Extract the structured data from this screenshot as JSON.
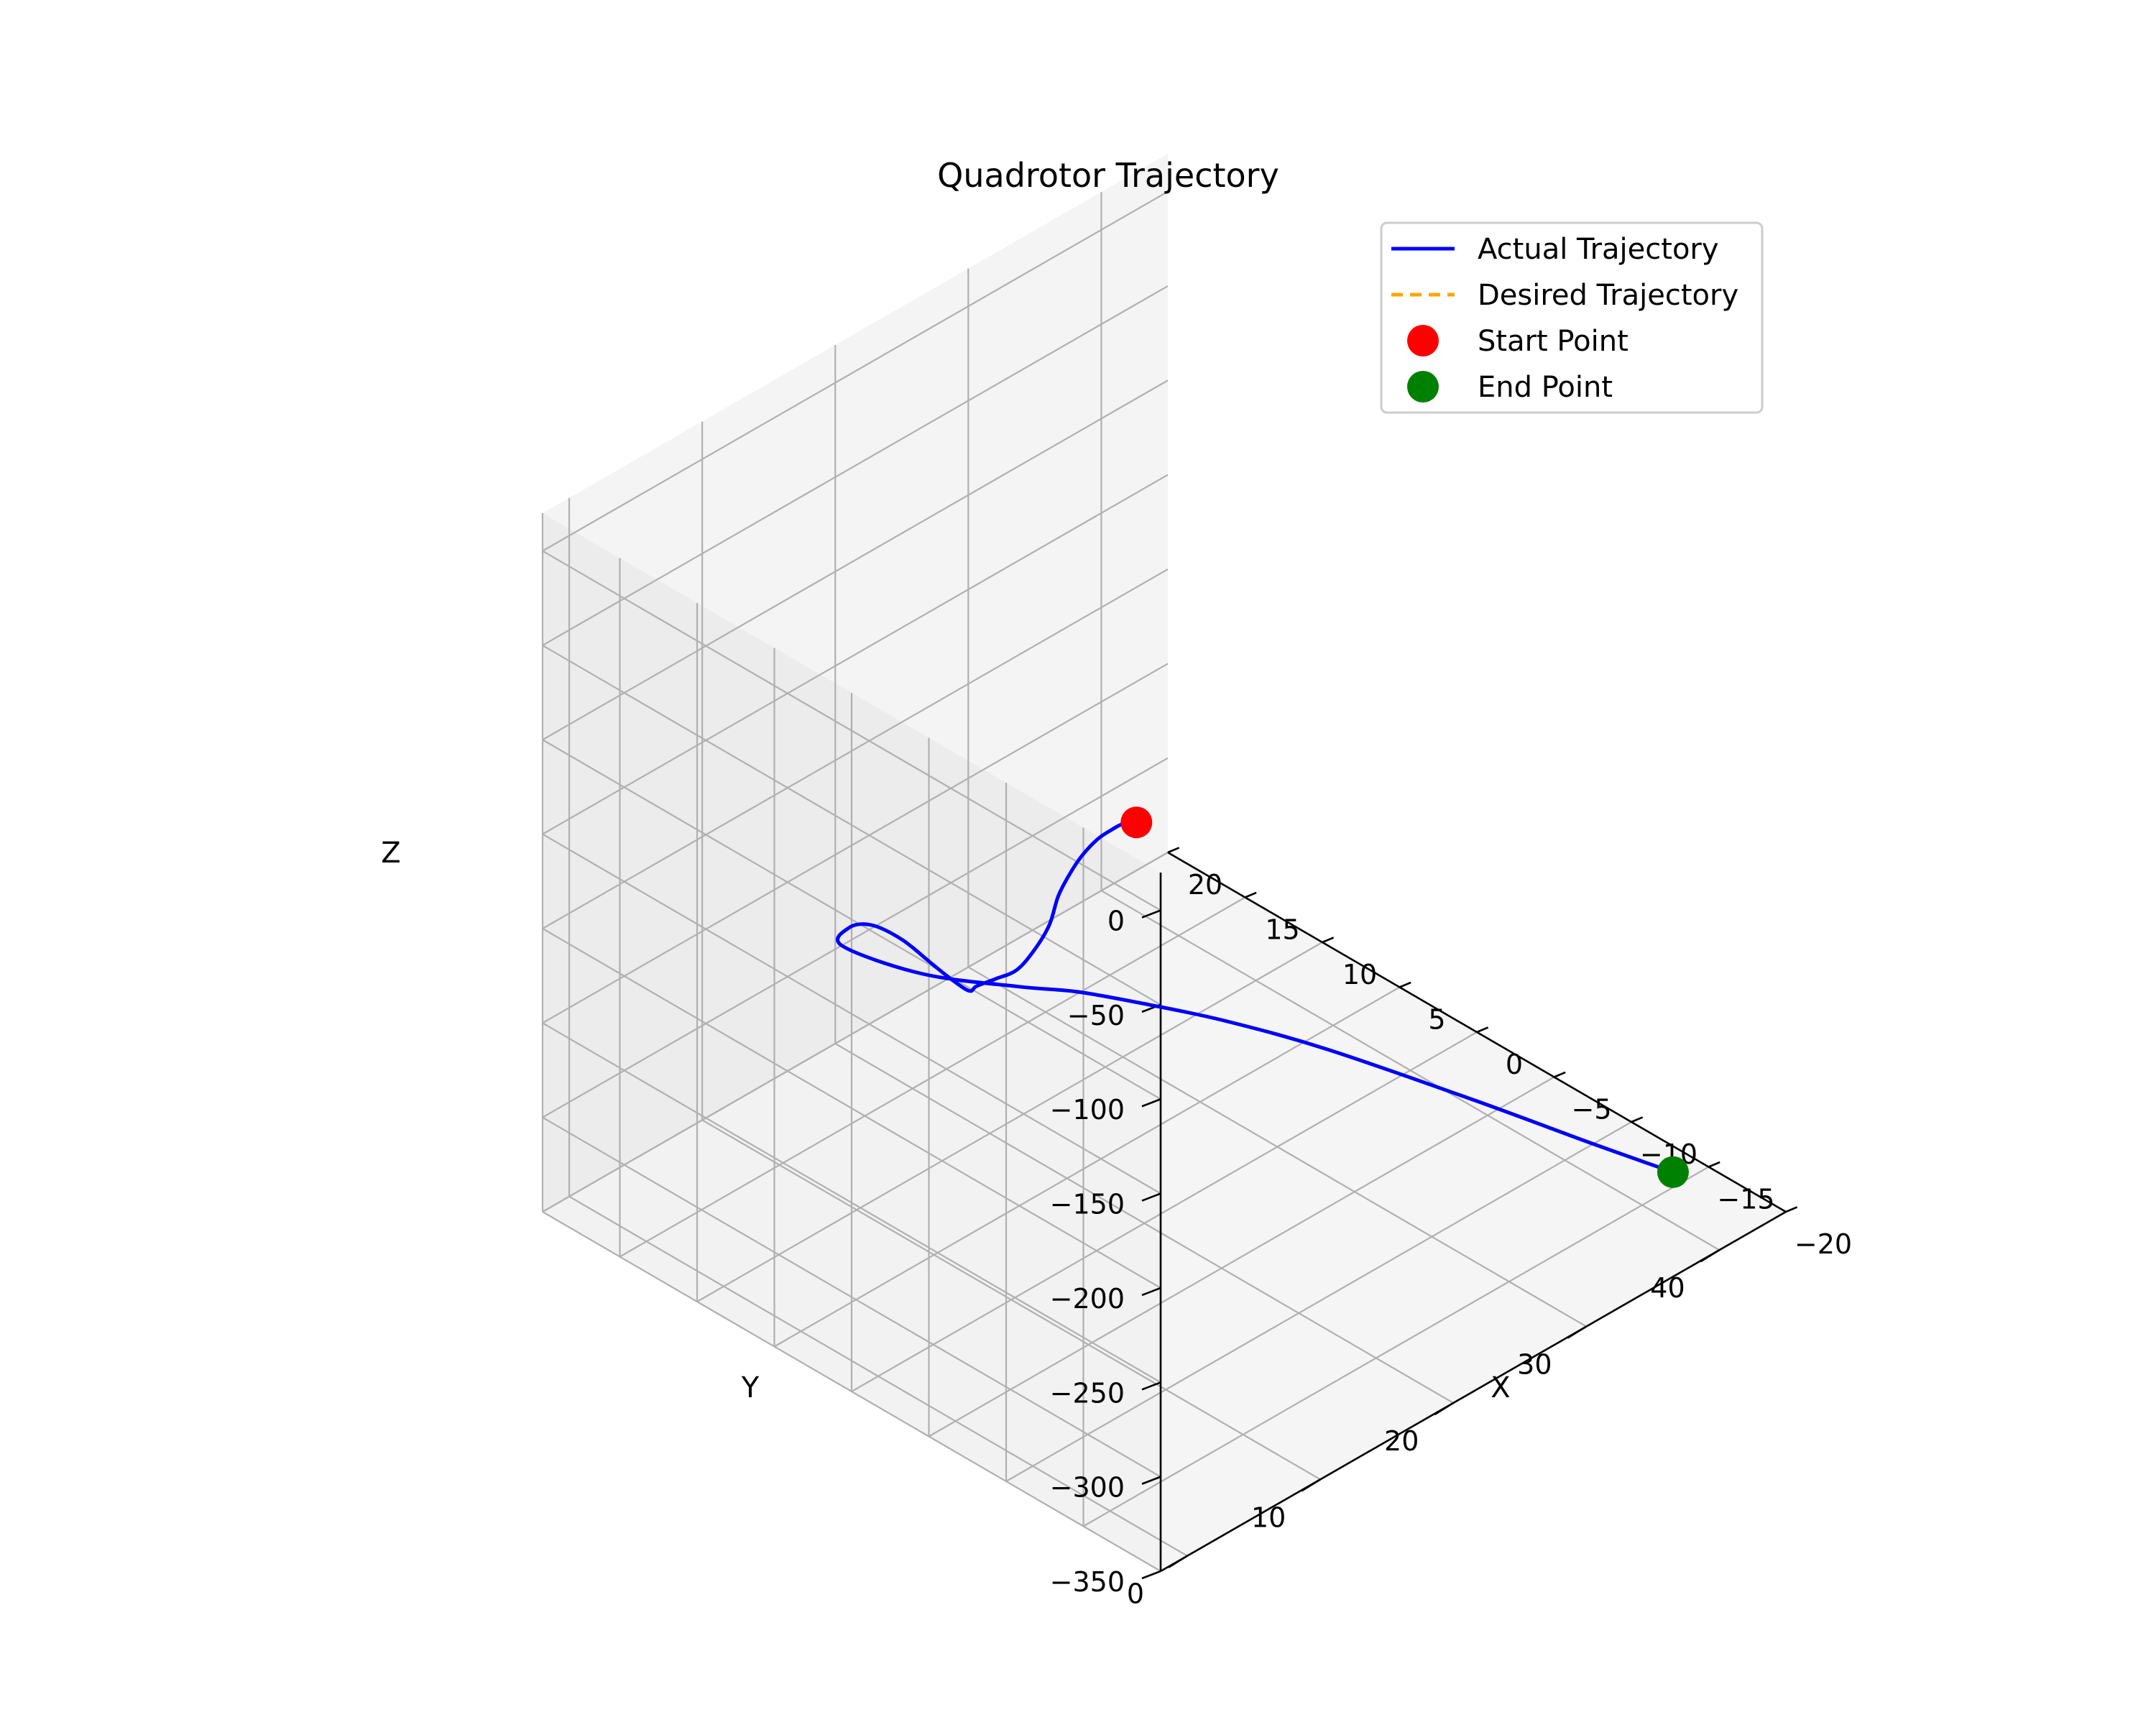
{
  "chart_data": {
    "type": "line3d",
    "title": "Quadrotor Trajectory",
    "xlabel": "X",
    "ylabel": "Y",
    "zlabel": "Z",
    "xlim": [
      -20,
      20
    ],
    "ylim": [
      -2,
      45
    ],
    "zlim": [
      -350,
      20
    ],
    "x_ticks": [
      -20,
      -15,
      -10,
      -5,
      0,
      5,
      10,
      15,
      20
    ],
    "x_tick_labels": [
      "−20",
      "−15",
      "−10",
      "−5",
      "0",
      "5",
      "10",
      "15",
      "20"
    ],
    "y_ticks": [
      0,
      10,
      20,
      30,
      40
    ],
    "y_tick_labels": [
      "0",
      "10",
      "20",
      "30",
      "40"
    ],
    "z_ticks": [
      0,
      -50,
      -100,
      -150,
      -200,
      -250,
      -300,
      -350
    ],
    "z_tick_labels": [
      "0",
      "−50",
      "−100",
      "−150",
      "−200",
      "−250",
      "−300",
      "−350"
    ],
    "grid": true,
    "legend_position": "top-right",
    "series": [
      {
        "name": "Actual Trajectory",
        "style": "solid",
        "color": "#0000ff",
        "x": [
          -13.9,
          -12.9,
          -11.8,
          -10.5,
          -9.1,
          -7.8,
          -6.4,
          -5.3,
          -3.6,
          -1.8,
          0.5,
          2.5,
          3.3,
          5.1,
          7.7,
          11.2,
          14.9,
          17.8,
          19.1,
          15.8,
          12.0,
          9.8,
          7.0,
          3.8,
          -0.5,
          -7.5,
          -13.0,
          -17.0
        ],
        "y": [
          3.0,
          3.4,
          3.8,
          4.3,
          4.8,
          5.4,
          6.1,
          6.7,
          7.5,
          8.3,
          9.4,
          10.3,
          10.7,
          11.6,
          12.9,
          14.8,
          16.8,
          18.5,
          19.5,
          21.7,
          24.5,
          26.4,
          28.5,
          30.6,
          33.2,
          36.2,
          38.4,
          40.0
        ],
        "z": [
          -5,
          -10,
          -20,
          -33,
          -50,
          -68,
          -90,
          -113,
          -138,
          -160,
          -180,
          -197,
          -205,
          -212,
          -220,
          -232,
          -250,
          -272,
          -292,
          -300,
          -300,
          -300,
          -302,
          -304,
          -309,
          -315,
          -320,
          -323
        ]
      },
      {
        "name": "Desired Trajectory",
        "style": "dashed",
        "color": "#ffa500"
      }
    ],
    "points": [
      {
        "name": "Start Point",
        "color": "#ff0000",
        "x": -14.3,
        "y": 2.8,
        "z": 0
      },
      {
        "name": "End Point",
        "color": "#008000",
        "x": -17.0,
        "y": 40.0,
        "z": -323
      }
    ]
  }
}
